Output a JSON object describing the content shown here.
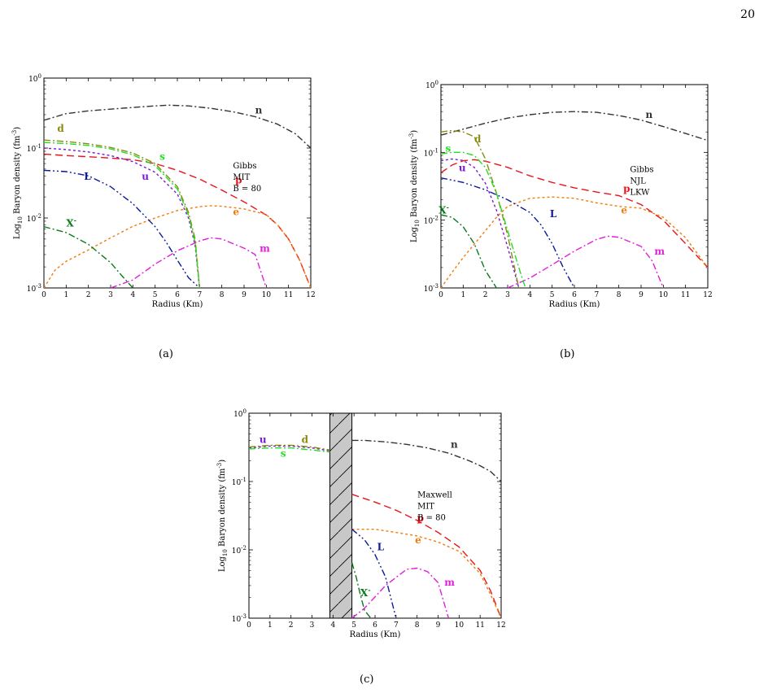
{
  "page": {
    "number": "20"
  },
  "colors": {
    "n": "#333333",
    "p": "#e8141a",
    "e": "#f07c0a",
    "m": "#e020d8",
    "L": "#0a1a99",
    "X": "#0a7a1a",
    "u": "#7a1ad6",
    "d": "#8a8a10",
    "s": "#22dd22",
    "mixed_phase": "#c8c8c8"
  },
  "chart_data": [
    {
      "type": "line",
      "caption": "(a)",
      "xlabel": "Radius (Km)",
      "ylabel": "Log10 Baryon density (fm-3)",
      "ylabel_parts": {
        "pre": "Log",
        "sub": "10",
        "mid": " Baryon density (fm",
        "sup": "-3",
        "post": ")"
      },
      "xlim": [
        0,
        12
      ],
      "ylim": [
        0.001,
        1
      ],
      "yscale": "log",
      "xticks": [
        "0",
        "1",
        "2",
        "3",
        "4",
        "5",
        "6",
        "7",
        "8",
        "9",
        "10",
        "11",
        "12"
      ],
      "yticks": [
        {
          "base": "10",
          "exp": "0",
          "value": 1
        },
        {
          "base": "10",
          "exp": "-1",
          "value": 0.1
        },
        {
          "base": "10",
          "exp": "-2",
          "value": 0.01
        },
        {
          "base": "10",
          "exp": "-3",
          "value": 0.001
        }
      ],
      "annotation": [
        "Gibbs",
        "MIT",
        "B = 80"
      ],
      "series": [
        {
          "name": "n",
          "color_key": "n",
          "dash": "dashdot",
          "x": [
            0,
            1,
            2,
            3,
            4,
            5,
            5.6,
            6.5,
            7.5,
            8.5,
            9.5,
            10.5,
            11.3,
            12
          ],
          "y": [
            0.25,
            0.31,
            0.34,
            0.36,
            0.38,
            0.4,
            0.41,
            0.4,
            0.37,
            0.33,
            0.28,
            0.22,
            0.16,
            0.1
          ],
          "label": {
            "text": "n",
            "x": 9.5,
            "y": 0.31
          }
        },
        {
          "name": "p",
          "color_key": "p",
          "dash": "dashed",
          "x": [
            0,
            1,
            2,
            3,
            4,
            5,
            6,
            7,
            8,
            9,
            10,
            10.5,
            11,
            11.5,
            12
          ],
          "y": [
            0.082,
            0.078,
            0.075,
            0.072,
            0.068,
            0.06,
            0.048,
            0.036,
            0.025,
            0.017,
            0.011,
            0.008,
            0.005,
            0.0025,
            0.001
          ],
          "label": {
            "text": "p",
            "x": 8.6,
            "y": 0.031
          }
        },
        {
          "name": "e",
          "color_key": "e",
          "dash": "dotted",
          "x": [
            0,
            0.5,
            1,
            2,
            3,
            4,
            5,
            6,
            7,
            7.5,
            8,
            9,
            10,
            10.5,
            11,
            11.5,
            12
          ],
          "y": [
            0.001,
            0.0018,
            0.0024,
            0.0035,
            0.0052,
            0.0076,
            0.01,
            0.0128,
            0.0145,
            0.015,
            0.0147,
            0.0135,
            0.0112,
            0.008,
            0.005,
            0.0025,
            0.001
          ],
          "label": {
            "text": "e",
            "x": 8.5,
            "y": 0.011
          }
        },
        {
          "name": "m",
          "color_key": "m",
          "dash": "dashdot",
          "x": [
            3,
            4,
            5,
            6,
            7,
            7.5,
            8,
            9,
            9.5,
            10
          ],
          "y": [
            0.001,
            0.0013,
            0.0022,
            0.0034,
            0.0047,
            0.0052,
            0.005,
            0.0037,
            0.003,
            0.001
          ],
          "label": {
            "text": "m",
            "x": 9.7,
            "y": 0.0033
          }
        },
        {
          "name": "L",
          "color_key": "L",
          "dash": "dashdotdot",
          "x": [
            0,
            1,
            2,
            3,
            4,
            5,
            5.5,
            6,
            6.5,
            7
          ],
          "y": [
            0.048,
            0.046,
            0.04,
            0.028,
            0.016,
            0.0075,
            0.0045,
            0.0025,
            0.0014,
            0.001
          ],
          "label": {
            "text": "L",
            "x": 1.8,
            "y": 0.035
          }
        },
        {
          "name": "X-",
          "color_key": "X",
          "dash": "dashdot",
          "x": [
            0,
            1,
            2,
            3,
            3.5,
            4
          ],
          "y": [
            0.0075,
            0.0062,
            0.0042,
            0.0023,
            0.0015,
            0.001
          ],
          "label": {
            "text": "X",
            "sup": "-",
            "x": 1.0,
            "y": 0.0075
          }
        },
        {
          "name": "u",
          "color_key": "u",
          "dash": "dotted",
          "x": [
            0,
            1,
            2,
            3,
            4,
            5,
            6,
            6.5,
            6.8,
            7
          ],
          "y": [
            0.1,
            0.095,
            0.088,
            0.078,
            0.064,
            0.045,
            0.022,
            0.01,
            0.004,
            0.001
          ],
          "label": {
            "text": "u",
            "x": 4.4,
            "y": 0.035
          }
        },
        {
          "name": "d",
          "color_key": "d",
          "dash": "dashdot",
          "x": [
            0,
            1,
            2,
            3,
            4,
            5,
            6,
            6.5,
            6.8,
            7
          ],
          "y": [
            0.13,
            0.124,
            0.115,
            0.102,
            0.085,
            0.06,
            0.028,
            0.012,
            0.005,
            0.001
          ],
          "label": {
            "text": "d",
            "x": 0.6,
            "y": 0.17
          }
        },
        {
          "name": "s",
          "color_key": "s",
          "dash": "dashdot",
          "x": [
            0,
            1,
            2,
            3,
            4,
            5,
            6,
            6.5,
            6.8,
            7
          ],
          "y": [
            0.12,
            0.116,
            0.109,
            0.097,
            0.08,
            0.056,
            0.026,
            0.011,
            0.0045,
            0.001
          ],
          "label": {
            "text": "s",
            "x": 5.2,
            "y": 0.068
          }
        }
      ]
    },
    {
      "type": "line",
      "caption": "(b)",
      "xlabel": "Radius (Km)",
      "ylabel": "Log10 Baryon density (fm-3)",
      "ylabel_parts": {
        "pre": "Log",
        "sub": "10",
        "mid": " Baryon density (fm",
        "sup": "-3",
        "post": ")"
      },
      "xlim": [
        0,
        12
      ],
      "ylim": [
        0.001,
        1
      ],
      "yscale": "log",
      "xticks": [
        "0",
        "1",
        "2",
        "3",
        "4",
        "5",
        "6",
        "7",
        "8",
        "9",
        "10",
        "11",
        "12"
      ],
      "yticks": [
        {
          "base": "10",
          "exp": "0",
          "value": 1
        },
        {
          "base": "10",
          "exp": "-1",
          "value": 0.1
        },
        {
          "base": "10",
          "exp": "-2",
          "value": 0.01
        },
        {
          "base": "10",
          "exp": "-3",
          "value": 0.001
        }
      ],
      "annotation": [
        "Gibbs",
        "NJL",
        "LKW"
      ],
      "series": [
        {
          "name": "n",
          "color_key": "n",
          "dash": "dashdot",
          "x": [
            0,
            1,
            2,
            3,
            4,
            5,
            6,
            7,
            8,
            9,
            10,
            11,
            12
          ],
          "y": [
            0.18,
            0.22,
            0.27,
            0.32,
            0.36,
            0.39,
            0.4,
            0.39,
            0.35,
            0.3,
            0.24,
            0.19,
            0.15
          ],
          "label": {
            "text": "n",
            "x": 9.2,
            "y": 0.32
          }
        },
        {
          "name": "p",
          "color_key": "p",
          "dash": "dashed",
          "x": [
            0,
            0.5,
            1,
            1.5,
            2,
            3,
            4,
            5,
            6,
            7,
            8,
            9,
            10,
            11,
            12
          ],
          "y": [
            0.05,
            0.065,
            0.075,
            0.078,
            0.074,
            0.06,
            0.045,
            0.036,
            0.03,
            0.026,
            0.023,
            0.017,
            0.01,
            0.0045,
            0.002
          ],
          "label": {
            "text": "p",
            "x": 8.2,
            "y": 0.026
          }
        },
        {
          "name": "e",
          "color_key": "e",
          "dash": "dotted",
          "x": [
            0,
            0.5,
            1,
            2,
            2.5,
            3,
            4,
            5,
            6,
            7,
            8,
            9,
            10,
            11,
            12
          ],
          "y": [
            0.001,
            0.0017,
            0.0028,
            0.007,
            0.011,
            0.016,
            0.021,
            0.022,
            0.021,
            0.018,
            0.016,
            0.015,
            0.011,
            0.0055,
            0.002
          ],
          "label": {
            "text": "e",
            "x": 8.1,
            "y": 0.0125
          }
        },
        {
          "name": "m",
          "color_key": "m",
          "dash": "dashdot",
          "x": [
            3,
            4,
            5,
            6,
            7,
            7.5,
            8,
            9,
            9.5,
            10
          ],
          "y": [
            0.001,
            0.0014,
            0.0022,
            0.0035,
            0.0052,
            0.0058,
            0.0056,
            0.0041,
            0.0025,
            0.001
          ],
          "label": {
            "text": "m",
            "x": 9.6,
            "y": 0.0031
          }
        },
        {
          "name": "L",
          "color_key": "L",
          "dash": "dashdotdot",
          "x": [
            0,
            1,
            2,
            3,
            4,
            4.5,
            5,
            5.5,
            6
          ],
          "y": [
            0.042,
            0.036,
            0.028,
            0.02,
            0.013,
            0.0085,
            0.0045,
            0.002,
            0.001
          ],
          "label": {
            "text": "L",
            "x": 4.9,
            "y": 0.011
          }
        },
        {
          "name": "X-",
          "color_key": "X",
          "dash": "dashdot",
          "x": [
            0,
            0.5,
            1,
            1.5,
            2,
            2.5
          ],
          "y": [
            0.012,
            0.011,
            0.008,
            0.0045,
            0.0018,
            0.001
          ],
          "label": {
            "text": "X",
            "sup": "-",
            "x": -0.1,
            "y": 0.0125
          }
        },
        {
          "name": "u",
          "color_key": "u",
          "dash": "dotted",
          "x": [
            0,
            0.5,
            1,
            1.5,
            2,
            2.5,
            3,
            3.5
          ],
          "y": [
            0.075,
            0.08,
            0.076,
            0.06,
            0.035,
            0.014,
            0.004,
            0.001
          ],
          "label": {
            "text": "u",
            "x": 0.8,
            "y": 0.053
          }
        },
        {
          "name": "d",
          "color_key": "d",
          "dash": "dashdot",
          "x": [
            0,
            0.5,
            1,
            1.5,
            2,
            2.5,
            3,
            3.5
          ],
          "y": [
            0.2,
            0.21,
            0.2,
            0.17,
            0.08,
            0.025,
            0.006,
            0.001
          ],
          "label": {
            "text": "d",
            "x": 1.5,
            "y": 0.14
          }
        },
        {
          "name": "s",
          "color_key": "s",
          "dash": "dashdot",
          "x": [
            0,
            0.5,
            1,
            1.5,
            2,
            2.5,
            3,
            3.5,
            3.8
          ],
          "y": [
            0.095,
            0.1,
            0.1,
            0.09,
            0.06,
            0.025,
            0.007,
            0.002,
            0.001
          ],
          "label": {
            "text": "s",
            "x": 0.2,
            "y": 0.102
          }
        }
      ]
    },
    {
      "type": "line",
      "caption": "(c)",
      "xlabel": "Radius (Km)",
      "ylabel": "Log10 Baryon density (fm-3)",
      "ylabel_parts": {
        "pre": "Log",
        "sub": "10",
        "mid": " Baryon density (fm",
        "sup": "-3",
        "post": ")"
      },
      "xlim": [
        0,
        12
      ],
      "ylim": [
        0.001,
        1
      ],
      "yscale": "log",
      "xticks": [
        "0",
        "1",
        "2",
        "3",
        "4",
        "5",
        "6",
        "7",
        "8",
        "9",
        "10",
        "11",
        "12"
      ],
      "yticks": [
        {
          "base": "10",
          "exp": "0",
          "value": 1
        },
        {
          "base": "10",
          "exp": "-1",
          "value": 0.1
        },
        {
          "base": "10",
          "exp": "-2",
          "value": 0.01
        },
        {
          "base": "10",
          "exp": "-3",
          "value": 0.001
        }
      ],
      "annotation": [
        "Maxwell",
        "MIT",
        "B = 80"
      ],
      "mixed_phase_region": [
        3.85,
        4.9
      ],
      "series": [
        {
          "name": "n",
          "color_key": "n",
          "dash": "dashdot",
          "x": [
            4.9,
            5.5,
            6.5,
            7.5,
            8.5,
            9.5,
            10.5,
            11,
            11.5,
            12
          ],
          "y": [
            0.4,
            0.4,
            0.38,
            0.35,
            0.31,
            0.26,
            0.2,
            0.17,
            0.14,
            0.1
          ],
          "label": {
            "text": "n",
            "x": 9.6,
            "y": 0.31
          }
        },
        {
          "name": "p",
          "color_key": "p",
          "dash": "dashed",
          "x": [
            4.9,
            6,
            7,
            8,
            8.5,
            9,
            10,
            11,
            11.5,
            12
          ],
          "y": [
            0.065,
            0.05,
            0.038,
            0.027,
            0.022,
            0.018,
            0.011,
            0.005,
            0.0025,
            0.001
          ],
          "label": {
            "text": "p",
            "x": 8.0,
            "y": 0.026
          }
        },
        {
          "name": "e",
          "color_key": "e",
          "dash": "dotted",
          "x": [
            4.9,
            6,
            7,
            8,
            9,
            10,
            11,
            11.5,
            12
          ],
          "y": [
            0.02,
            0.02,
            0.018,
            0.016,
            0.013,
            0.0095,
            0.0045,
            0.0022,
            0.001
          ],
          "label": {
            "text": "e",
            "x": 7.9,
            "y": 0.0125
          }
        },
        {
          "name": "m",
          "color_key": "m",
          "dash": "dashdot",
          "x": [
            4.9,
            5.5,
            6.5,
            7.5,
            8,
            8.5,
            9,
            9.5
          ],
          "y": [
            0.001,
            0.0014,
            0.003,
            0.0052,
            0.0054,
            0.0048,
            0.0033,
            0.001
          ],
          "label": {
            "text": "m",
            "x": 9.3,
            "y": 0.003
          }
        },
        {
          "name": "L",
          "color_key": "L",
          "dash": "dashdotdot",
          "x": [
            4.9,
            5.5,
            6,
            6.5,
            7
          ],
          "y": [
            0.02,
            0.014,
            0.0085,
            0.004,
            0.001
          ],
          "label": {
            "text": "L",
            "x": 6.1,
            "y": 0.0098
          }
        },
        {
          "name": "X-",
          "color_key": "X",
          "dash": "dashdot",
          "x": [
            4.9,
            5.1,
            5.3,
            5.5,
            5.8
          ],
          "y": [
            0.0065,
            0.004,
            0.0022,
            0.0013,
            0.001
          ],
          "label": {
            "text": "X",
            "sup": "-",
            "x": 5.3,
            "y": 0.0021
          }
        },
        {
          "name": "u",
          "color_key": "u",
          "dash": "dotted",
          "x": [
            0,
            1,
            2,
            3,
            3.85
          ],
          "y": [
            0.31,
            0.33,
            0.33,
            0.31,
            0.28
          ],
          "label": {
            "text": "u",
            "x": 0.5,
            "y": 0.37
          }
        },
        {
          "name": "d",
          "color_key": "d",
          "dash": "dashdot",
          "x": [
            0,
            1,
            2,
            3,
            3.85
          ],
          "y": [
            0.32,
            0.34,
            0.34,
            0.32,
            0.29
          ],
          "label": {
            "text": "d",
            "x": 2.5,
            "y": 0.37
          }
        },
        {
          "name": "s",
          "color_key": "s",
          "dash": "dashdot",
          "x": [
            0,
            1,
            2,
            3,
            3.85
          ],
          "y": [
            0.3,
            0.31,
            0.31,
            0.29,
            0.27
          ],
          "label": {
            "text": "s",
            "x": 1.5,
            "y": 0.23
          }
        }
      ]
    }
  ]
}
